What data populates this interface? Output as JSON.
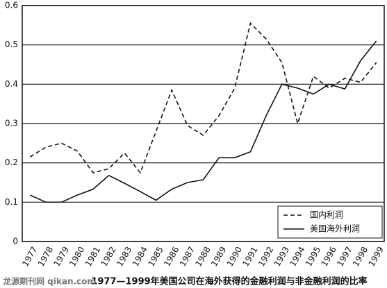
{
  "chart_data": {
    "type": "line",
    "title": "1977—1999年美国公司在海外获得的金融利润与非金融利润的比率",
    "watermark": "龙源期刊网 qikan.com",
    "categories": [
      "1977",
      "1978",
      "1979",
      "1980",
      "1981",
      "1982",
      "1983",
      "1984",
      "1985",
      "1986",
      "1987",
      "1988",
      "1989",
      "1990",
      "1991",
      "1992",
      "1993",
      "1994",
      "1995",
      "1996",
      "1997",
      "1998",
      "1999"
    ],
    "series": [
      {
        "name": "国内利润",
        "color": "#111111",
        "dash": true,
        "values": [
          0.215,
          0.24,
          0.25,
          0.23,
          0.175,
          0.185,
          0.225,
          0.175,
          0.28,
          0.385,
          0.295,
          0.27,
          0.32,
          0.39,
          0.555,
          0.515,
          0.455,
          0.3,
          0.42,
          0.39,
          0.415,
          0.405,
          0.455
        ]
      },
      {
        "name": "美国海外利润",
        "color": "#111111",
        "dash": false,
        "values": [
          0.118,
          0.1,
          0.1,
          0.118,
          0.133,
          0.168,
          0.148,
          0.127,
          0.105,
          0.133,
          0.15,
          0.157,
          0.213,
          0.213,
          0.228,
          0.32,
          0.4,
          0.39,
          0.375,
          0.4,
          0.388,
          0.46,
          0.51
        ]
      }
    ],
    "ylim": [
      0,
      0.6
    ],
    "yticks": [
      0,
      0.1,
      0.2,
      0.3,
      0.4,
      0.5,
      0.6
    ],
    "grid": true,
    "legend": "bottom-right"
  }
}
